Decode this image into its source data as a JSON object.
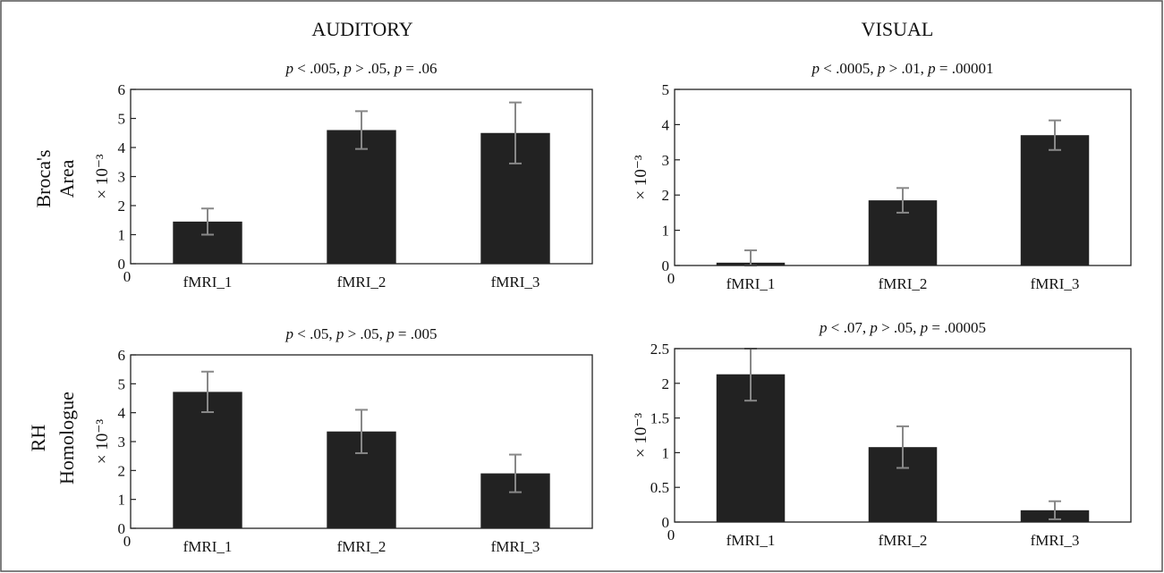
{
  "figure": {
    "column_titles": [
      "AUDITORY",
      "VISUAL"
    ],
    "row_labels": [
      [
        "Broca's",
        "Area"
      ],
      [
        "RH",
        "Homologue"
      ]
    ]
  },
  "chart_data": [
    {
      "type": "bar",
      "title": "p < .005, p > .05, p = .06",
      "ylabel": "× 10⁻³",
      "categories": [
        "fMRI_1",
        "fMRI_2",
        "fMRI_3"
      ],
      "values": [
        1.45,
        4.6,
        4.5
      ],
      "errors": [
        0.45,
        0.65,
        1.05
      ],
      "ylim": [
        0,
        6
      ],
      "yticks": [
        "0",
        "1",
        "2",
        "3",
        "4",
        "5",
        "6"
      ],
      "ytick_values": [
        0,
        1,
        2,
        3,
        4,
        5,
        6
      ],
      "origin_label": "0"
    },
    {
      "type": "bar",
      "title": "p < .0005, p > .01, p = .00001",
      "ylabel": "× 10⁻³",
      "categories": [
        "fMRI_1",
        "fMRI_2",
        "fMRI_3"
      ],
      "values": [
        0.08,
        1.85,
        3.7
      ],
      "errors": [
        0.35,
        0.35,
        0.42
      ],
      "ylim": [
        0,
        5
      ],
      "yticks": [
        "0",
        "1",
        "2",
        "3",
        "4",
        "5"
      ],
      "ytick_values": [
        0,
        1,
        2,
        3,
        4,
        5
      ],
      "origin_label": "0"
    },
    {
      "type": "bar",
      "title": "p < .05, p > .05, p = .005",
      "ylabel": "× 10⁻³",
      "categories": [
        "fMRI_1",
        "fMRI_2",
        "fMRI_3"
      ],
      "values": [
        4.72,
        3.35,
        1.9
      ],
      "errors": [
        0.7,
        0.75,
        0.65
      ],
      "ylim": [
        0,
        6
      ],
      "yticks": [
        "0",
        "1",
        "2",
        "3",
        "4",
        "5",
        "6"
      ],
      "ytick_values": [
        0,
        1,
        2,
        3,
        4,
        5,
        6
      ],
      "origin_label": "0"
    },
    {
      "type": "bar",
      "title": "p < .07, p > .05, p = .00005",
      "ylabel": "× 10⁻³",
      "categories": [
        "fMRI_1",
        "fMRI_2",
        "fMRI_3"
      ],
      "values": [
        2.13,
        1.08,
        0.17
      ],
      "errors": [
        0.38,
        0.3,
        0.13
      ],
      "ylim": [
        0,
        2.5
      ],
      "yticks": [
        "0",
        "0.5",
        "1",
        "1.5",
        "2",
        "2.5"
      ],
      "ytick_values": [
        0,
        0.5,
        1,
        1.5,
        2,
        2.5
      ],
      "origin_label": "0"
    }
  ]
}
